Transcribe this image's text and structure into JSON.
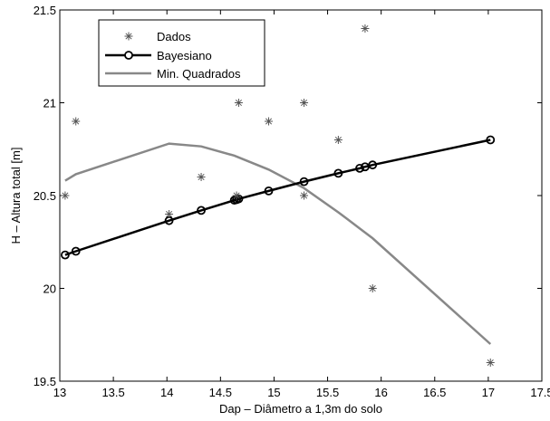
{
  "chart_data": {
    "type": "line",
    "title": "",
    "xlabel": "Dap – Diâmetro a 1,3m do solo",
    "ylabel": "H – Altura total [m]",
    "xlim": [
      13,
      17.5
    ],
    "ylim": [
      19.5,
      21.5
    ],
    "grid": false,
    "legend_position": "top-left",
    "x_ticks": [
      "13",
      "13.5",
      "14",
      "14.5",
      "15",
      "15.5",
      "16",
      "16.5",
      "17",
      "17.5"
    ],
    "y_ticks": [
      "19.5",
      "20",
      "20.5",
      "21",
      "21.5"
    ],
    "series": [
      {
        "name": "Dados",
        "kind": "scatter",
        "marker": "asterisk",
        "color": "#555555",
        "points": [
          [
            13.05,
            20.5
          ],
          [
            13.15,
            20.9
          ],
          [
            14.02,
            20.4
          ],
          [
            14.32,
            20.6
          ],
          [
            14.65,
            20.5
          ],
          [
            14.67,
            21.0
          ],
          [
            14.95,
            20.9
          ],
          [
            15.28,
            21.0
          ],
          [
            15.28,
            20.5
          ],
          [
            15.6,
            20.8
          ],
          [
            15.85,
            21.4
          ],
          [
            15.92,
            20.0
          ],
          [
            17.02,
            19.6
          ]
        ]
      },
      {
        "name": "Bayesiano",
        "kind": "line-marker",
        "marker": "circle",
        "color": "#000000",
        "points": [
          [
            13.05,
            20.18
          ],
          [
            13.15,
            20.2
          ],
          [
            14.02,
            20.365
          ],
          [
            14.32,
            20.42
          ],
          [
            14.63,
            20.475
          ],
          [
            14.65,
            20.478
          ],
          [
            14.67,
            20.482
          ],
          [
            14.95,
            20.525
          ],
          [
            15.28,
            20.575
          ],
          [
            15.6,
            20.62
          ],
          [
            15.8,
            20.647
          ],
          [
            15.85,
            20.655
          ],
          [
            15.92,
            20.665
          ],
          [
            17.02,
            20.8
          ]
        ]
      },
      {
        "name": "Min. Quadrados",
        "kind": "line",
        "color": "#888888",
        "points": [
          [
            13.05,
            20.58
          ],
          [
            13.15,
            20.615
          ],
          [
            14.02,
            20.78
          ],
          [
            14.32,
            20.765
          ],
          [
            14.63,
            20.715
          ],
          [
            14.95,
            20.64
          ],
          [
            15.28,
            20.54
          ],
          [
            15.6,
            20.41
          ],
          [
            15.92,
            20.27
          ],
          [
            17.02,
            19.7
          ]
        ]
      }
    ]
  }
}
